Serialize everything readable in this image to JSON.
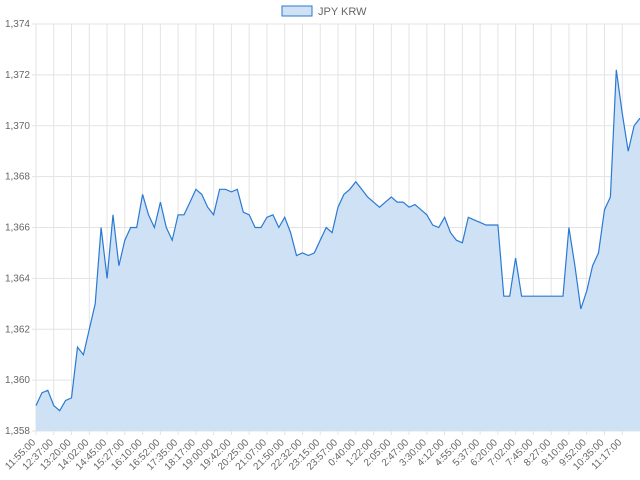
{
  "chart_data": {
    "type": "area",
    "categories": [
      "11:55:00",
      null,
      null,
      "12:37:00",
      null,
      null,
      "13:20:00",
      null,
      null,
      "14:02:00",
      null,
      null,
      "14:45:00",
      null,
      null,
      "15:27:00",
      null,
      null,
      "16:10:00",
      null,
      null,
      "16:52:00",
      null,
      null,
      "17:35:00",
      null,
      null,
      "18:17:00",
      null,
      null,
      "19:00:00",
      null,
      null,
      "19:42:00",
      null,
      null,
      "20:25:00",
      null,
      null,
      "21:07:00",
      null,
      null,
      "21:50:00",
      null,
      null,
      "22:32:00",
      null,
      null,
      "23:15:00",
      null,
      null,
      "23:57:00",
      null,
      null,
      "0:40:00",
      null,
      null,
      "1:22:00",
      null,
      null,
      "2:05:00",
      null,
      null,
      "2:47:00",
      null,
      null,
      "3:30:00",
      null,
      null,
      "4:12:00",
      null,
      null,
      "4:55:00",
      null,
      null,
      "5:37:00",
      null,
      null,
      "6:20:00",
      null,
      null,
      "7:02:00",
      null,
      null,
      "7:45:00",
      null,
      null,
      "8:27:00",
      null,
      null,
      "9:10:00",
      null,
      null,
      "9:52:00",
      null,
      null,
      "10:35:00",
      null,
      null,
      "11:17:00",
      null,
      null,
      null
    ],
    "series": [
      {
        "name": "JPY KRW",
        "color": "#2a7ad2",
        "fill": "#cfe1f5",
        "values": [
          1359.0,
          1359.5,
          1359.6,
          1359.0,
          1358.8,
          1359.2,
          1359.3,
          1361.3,
          1361.0,
          1362.0,
          1363.0,
          1366.0,
          1364.0,
          1366.5,
          1364.5,
          1365.5,
          1366.0,
          1366.0,
          1367.3,
          1366.5,
          1366.0,
          1367.0,
          1366.0,
          1365.5,
          1366.5,
          1366.5,
          1367.0,
          1367.5,
          1367.3,
          1366.8,
          1366.5,
          1367.5,
          1367.5,
          1367.4,
          1367.5,
          1366.6,
          1366.5,
          1366.0,
          1366.0,
          1366.4,
          1366.5,
          1366.0,
          1366.4,
          1365.8,
          1364.9,
          1365.0,
          1364.9,
          1365.0,
          1365.5,
          1366.0,
          1365.8,
          1366.8,
          1367.3,
          1367.5,
          1367.8,
          1367.5,
          1367.2,
          1367.0,
          1366.8,
          1367.0,
          1367.2,
          1367.0,
          1367.0,
          1366.8,
          1366.9,
          1366.7,
          1366.5,
          1366.1,
          1366.0,
          1366.4,
          1365.8,
          1365.5,
          1365.4,
          1366.4,
          1366.3,
          1366.2,
          1366.1,
          1366.1,
          1366.1,
          1363.3,
          1363.3,
          1364.8,
          1363.3,
          1363.3,
          1363.3,
          1363.3,
          1363.3,
          1363.3,
          1363.3,
          1363.3,
          1366.0,
          1364.5,
          1362.8,
          1363.5,
          1364.5,
          1365.0,
          1366.7,
          1367.2,
          1372.2,
          1370.5,
          1369.0,
          1370.0,
          1370.3
        ]
      }
    ],
    "ylim": [
      1358,
      1374
    ],
    "yticks": [
      {
        "value": 1358,
        "label": "1,358"
      },
      {
        "value": 1360,
        "label": "1,360"
      },
      {
        "value": 1362,
        "label": "1,362"
      },
      {
        "value": 1364,
        "label": "1,364"
      },
      {
        "value": 1366,
        "label": "1,366"
      },
      {
        "value": 1368,
        "label": "1,368"
      },
      {
        "value": 1370,
        "label": "1,370"
      },
      {
        "value": 1372,
        "label": "1,372"
      },
      {
        "value": 1374,
        "label": "1,374"
      }
    ],
    "grid": true,
    "legend": "top"
  }
}
